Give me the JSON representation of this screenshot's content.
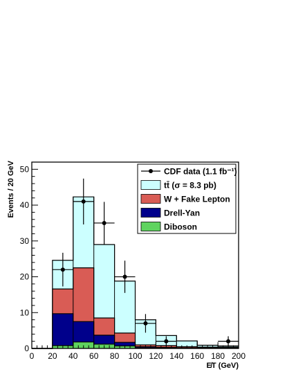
{
  "chart_data": {
    "type": "bar",
    "stacked": true,
    "bin_edges": [
      0,
      20,
      40,
      60,
      80,
      100,
      120,
      140,
      160,
      180,
      200
    ],
    "xlabel": "E̸T (GeV)",
    "ylabel": "Events / 20 GeV",
    "xlim": [
      0,
      200
    ],
    "ylim": [
      0,
      52
    ],
    "x_ticks": [
      0,
      20,
      40,
      60,
      80,
      100,
      120,
      140,
      160,
      180,
      200
    ],
    "y_ticks": [
      0,
      10,
      20,
      30,
      40,
      50
    ],
    "grid": false,
    "legend_position": "top-right",
    "series": [
      {
        "name": "Diboson",
        "color": "#5fd35f",
        "values": [
          0,
          0.8,
          1.8,
          1.2,
          0.7,
          0.2,
          0.1,
          0.1,
          0.1,
          0.1
        ]
      },
      {
        "name": "Drell-Yan",
        "color": "#00008b",
        "values": [
          0,
          8.9,
          5.7,
          2.5,
          1.0,
          0.3,
          0.2,
          0.1,
          0.1,
          0.1
        ]
      },
      {
        "name": "W + Fake Lepton",
        "color": "#d95c55",
        "values": [
          0,
          6.9,
          15.0,
          4.8,
          2.6,
          0.5,
          0.5,
          0.3,
          0.2,
          0.2
        ]
      },
      {
        "name": "tt̄ (σ = 8.3 pb)",
        "color": "#ccffff",
        "values": [
          0,
          8.0,
          19.8,
          20.5,
          14.5,
          7.0,
          2.8,
          1.6,
          0.5,
          0.3
        ]
      }
    ],
    "data": {
      "name": "CDF data (1.1 fb⁻¹)",
      "points": [
        {
          "x": 30,
          "y": 22,
          "yerr": 4.7
        },
        {
          "x": 50,
          "y": 41,
          "yerr": 6.4
        },
        {
          "x": 70,
          "y": 35,
          "yerr": 5.9
        },
        {
          "x": 90,
          "y": 20,
          "yerr": 4.5
        },
        {
          "x": 110,
          "y": 7,
          "yerr": 2.6
        },
        {
          "x": 130,
          "y": 2,
          "yerr": 1.4
        },
        {
          "x": 190,
          "y": 2,
          "yerr": 1.4
        }
      ]
    }
  }
}
